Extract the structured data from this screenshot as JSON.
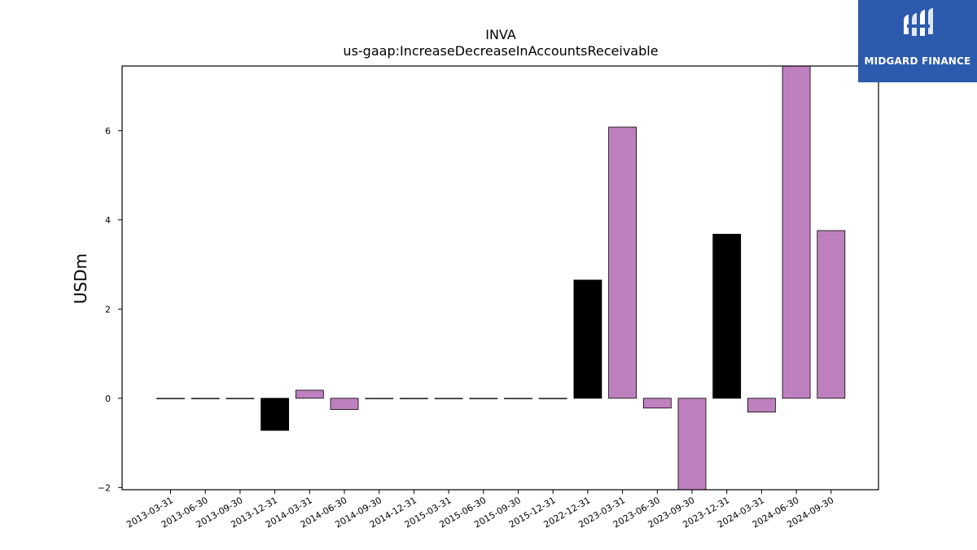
{
  "logo": {
    "brand_text": "MIDGARD FINANCE",
    "background": "#2c5aad"
  },
  "chart_data": {
    "type": "bar",
    "title": "INVA",
    "subtitle": "us-gaap:IncreaseDecreaseInAccountsReceivable",
    "ylabel": "USDm",
    "xlabel": "",
    "ylim": [
      -2.05,
      7.45
    ],
    "yticks": [
      -2,
      0,
      2,
      4,
      6
    ],
    "ytick_labels": [
      "−2",
      "0",
      "2",
      "4",
      "6"
    ],
    "grid": false,
    "legend": "none",
    "colors": {
      "q4": "#000000",
      "other": "#bf80bf"
    },
    "categories": [
      "2013-03-31",
      "2013-06-30",
      "2013-09-30",
      "2013-12-31",
      "2014-03-31",
      "2014-06-30",
      "2014-09-30",
      "2014-12-31",
      "2015-03-31",
      "2015-06-30",
      "2015-09-30",
      "2015-12-31",
      "2022-12-31",
      "2023-03-31",
      "2023-06-30",
      "2023-09-30",
      "2023-12-31",
      "2024-03-31",
      "2024-06-30",
      "2024-09-30"
    ],
    "values": [
      0,
      0,
      0,
      -0.72,
      0.18,
      -0.25,
      0,
      0,
      0,
      0,
      0,
      0,
      2.65,
      6.08,
      -0.22,
      -2.1,
      3.68,
      -0.31,
      7.5,
      3.76
    ]
  }
}
